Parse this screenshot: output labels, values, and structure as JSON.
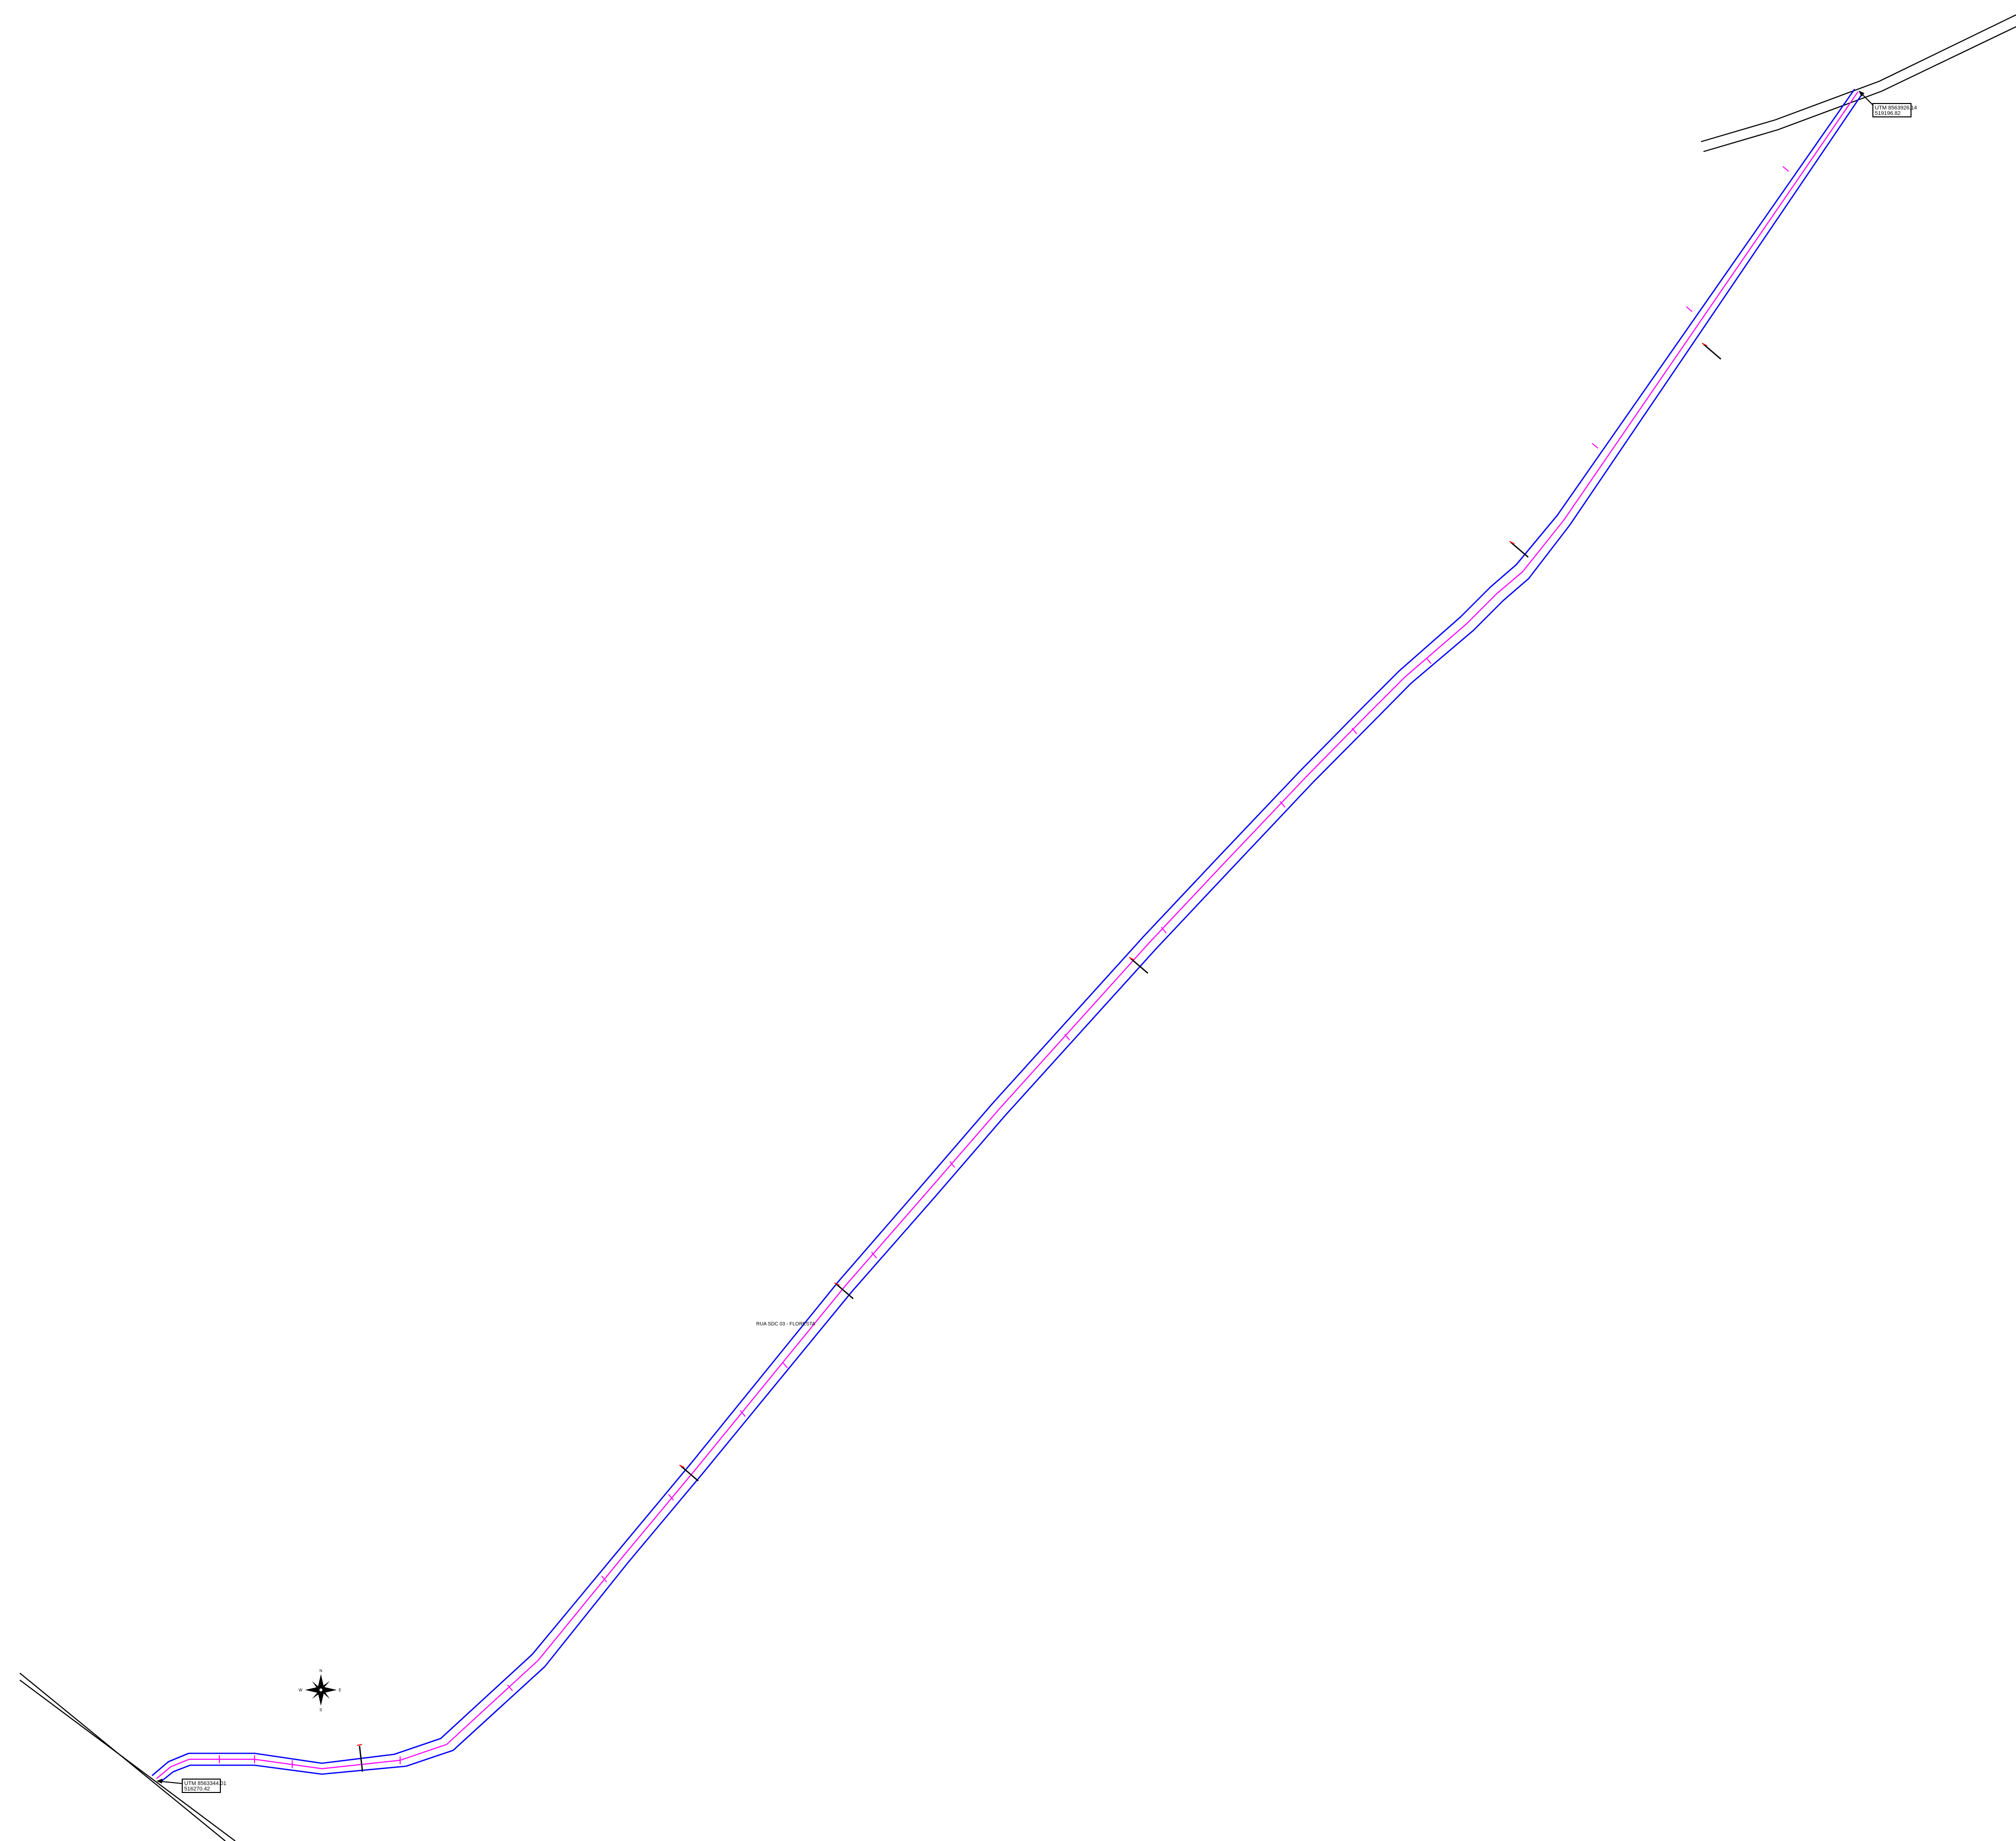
{
  "drawing": {
    "street_label": "RUA SDC 03 - FLORESTA",
    "start_marker": {
      "line1": "UTM 8563344.01",
      "line2": "516270.42"
    },
    "end_marker": {
      "line1": "UTM 8563926.14",
      "line2": "519196.82"
    },
    "compass": {
      "north": "N",
      "south": "S",
      "east": "E",
      "west": "W"
    }
  },
  "colors": {
    "road_edge": "#0000ff",
    "centerline": "#ff00ff",
    "existing_road": "#000000",
    "station_tick": "#ff0000",
    "background": "#ffffff"
  }
}
